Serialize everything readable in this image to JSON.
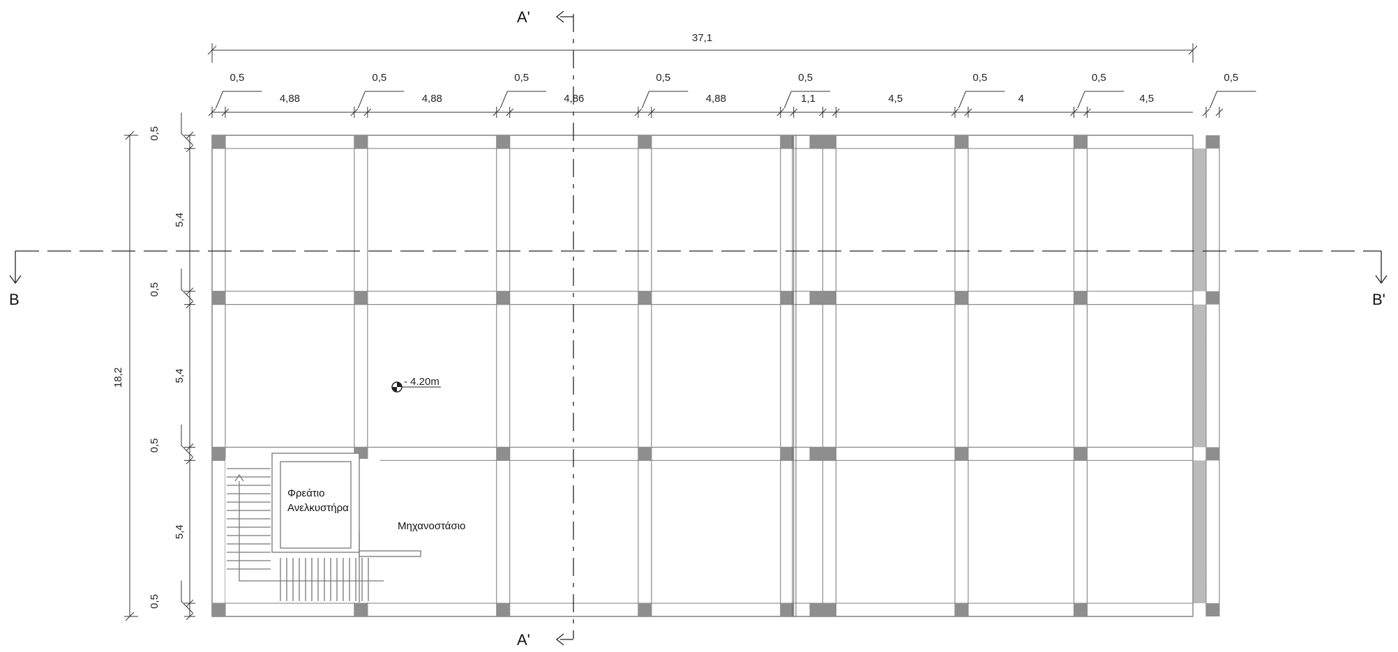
{
  "plan": {
    "overall_width": "37,1",
    "overall_depth": "18,2",
    "column_size": "0,5",
    "bay_widths": [
      "4,88",
      "4,88",
      "4,86",
      "4,88",
      "1,1",
      "4,5",
      "4",
      "4,5"
    ],
    "bay_depths": [
      "5,4",
      "5,4",
      "5,4"
    ],
    "level": "- 4.20m",
    "rooms": {
      "shaft_line1": "Φρεάτιο",
      "shaft_line2": "Ανελκυστήρα",
      "machine_room": "Μηχανοστάσιο"
    },
    "sections": {
      "a_top": "A'",
      "a_bottom": "A'",
      "b_left": "B",
      "b_right": "B'"
    },
    "colors": {
      "slab": "#b9b9b9",
      "column": "#8e8e8e",
      "beam_outline": "#8a8a8a",
      "line": "#333333"
    }
  }
}
